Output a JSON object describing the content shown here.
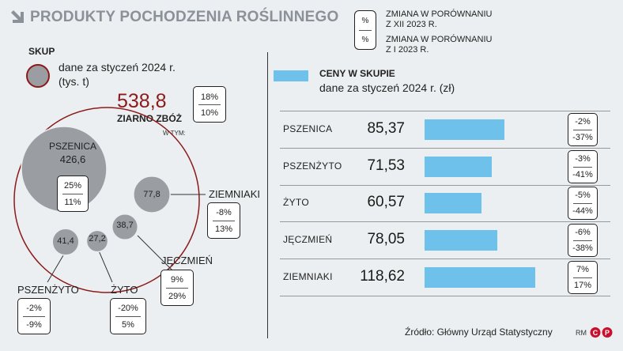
{
  "header": {
    "title": "PRODUKTY POCHODZENIA ROŚLINNEGO",
    "legend": {
      "box_symbol": "%",
      "label_1": "ZMIANA W PORÓWNANIU",
      "label_1b": "Z XII 2023 R.",
      "label_2": "ZMIANA W PORÓWNANIU",
      "label_2b": "Z I 2023 R."
    }
  },
  "skup": {
    "title": "SKUP",
    "desc_1": "dane za styczeń 2024 r.",
    "desc_2": "(tys. t)",
    "total_value": "538,8",
    "total_label": "ZIARNO ZBÓŻ",
    "total_change_1": "18%",
    "total_change_2": "10%",
    "w_tym": "W TYM:"
  },
  "colors": {
    "bubble": "#9a9ea3",
    "accent_red": "#8b1a1a",
    "bar": "#6ec1ea"
  },
  "chart_data": [
    {
      "type": "bubble",
      "title": "SKUP",
      "subtitle": "dane za styczeń 2024 r. (tys. t)",
      "total": {
        "label": "ZIARNO ZBÓŻ",
        "value": 538.8,
        "value_label": "538,8",
        "change_vs_dec_2023": "18%",
        "change_vs_jan_2023": "10%"
      },
      "items": [
        {
          "name": "PSZENICA",
          "value": 426.6,
          "value_label": "426,6",
          "change_vs_dec_2023": "25%",
          "change_vs_jan_2023": "11%"
        },
        {
          "name": "ZIEMNIAKI",
          "value": 77.8,
          "value_label": "77,8",
          "change_vs_dec_2023": "-8%",
          "change_vs_jan_2023": "13%"
        },
        {
          "name": "JĘCZMIEŃ",
          "value": 38.7,
          "value_label": "38,7",
          "change_vs_dec_2023": "9%",
          "change_vs_jan_2023": "29%"
        },
        {
          "name": "PSZENŻYTO",
          "value": 41.4,
          "value_label": "41,4",
          "change_vs_dec_2023": "-2%",
          "change_vs_jan_2023": "-9%"
        },
        {
          "name": "ŻYTO",
          "value": 27.2,
          "value_label": "27,2",
          "change_vs_dec_2023": "-20%",
          "change_vs_jan_2023": "5%"
        }
      ]
    },
    {
      "type": "bar",
      "title": "CENY W SKUPIE",
      "subtitle": "dane za styczeń 2024 r. (zł)",
      "categories": [
        "PSZENICA",
        "PSZENŻYTO",
        "ŻYTO",
        "JĘCZMIEŃ",
        "ZIEMNIAKI"
      ],
      "values": [
        85.37,
        71.53,
        60.57,
        78.05,
        118.62
      ],
      "value_labels": [
        "85,37",
        "71,53",
        "60,57",
        "78,05",
        "118,62"
      ],
      "change_vs_dec_2023": [
        "-2%",
        "-3%",
        "-5%",
        "-6%",
        "7%"
      ],
      "change_vs_jan_2023": [
        "-37%",
        "-41%",
        "-44%",
        "-38%",
        "17%"
      ]
    }
  ],
  "ceny": {
    "title": "CENY W SKUPIE",
    "desc": "dane za styczeń 2024 r. (zł)"
  },
  "footer": {
    "source": "Źródło: Główny Urząd Statystyczny",
    "credit": "RM"
  }
}
